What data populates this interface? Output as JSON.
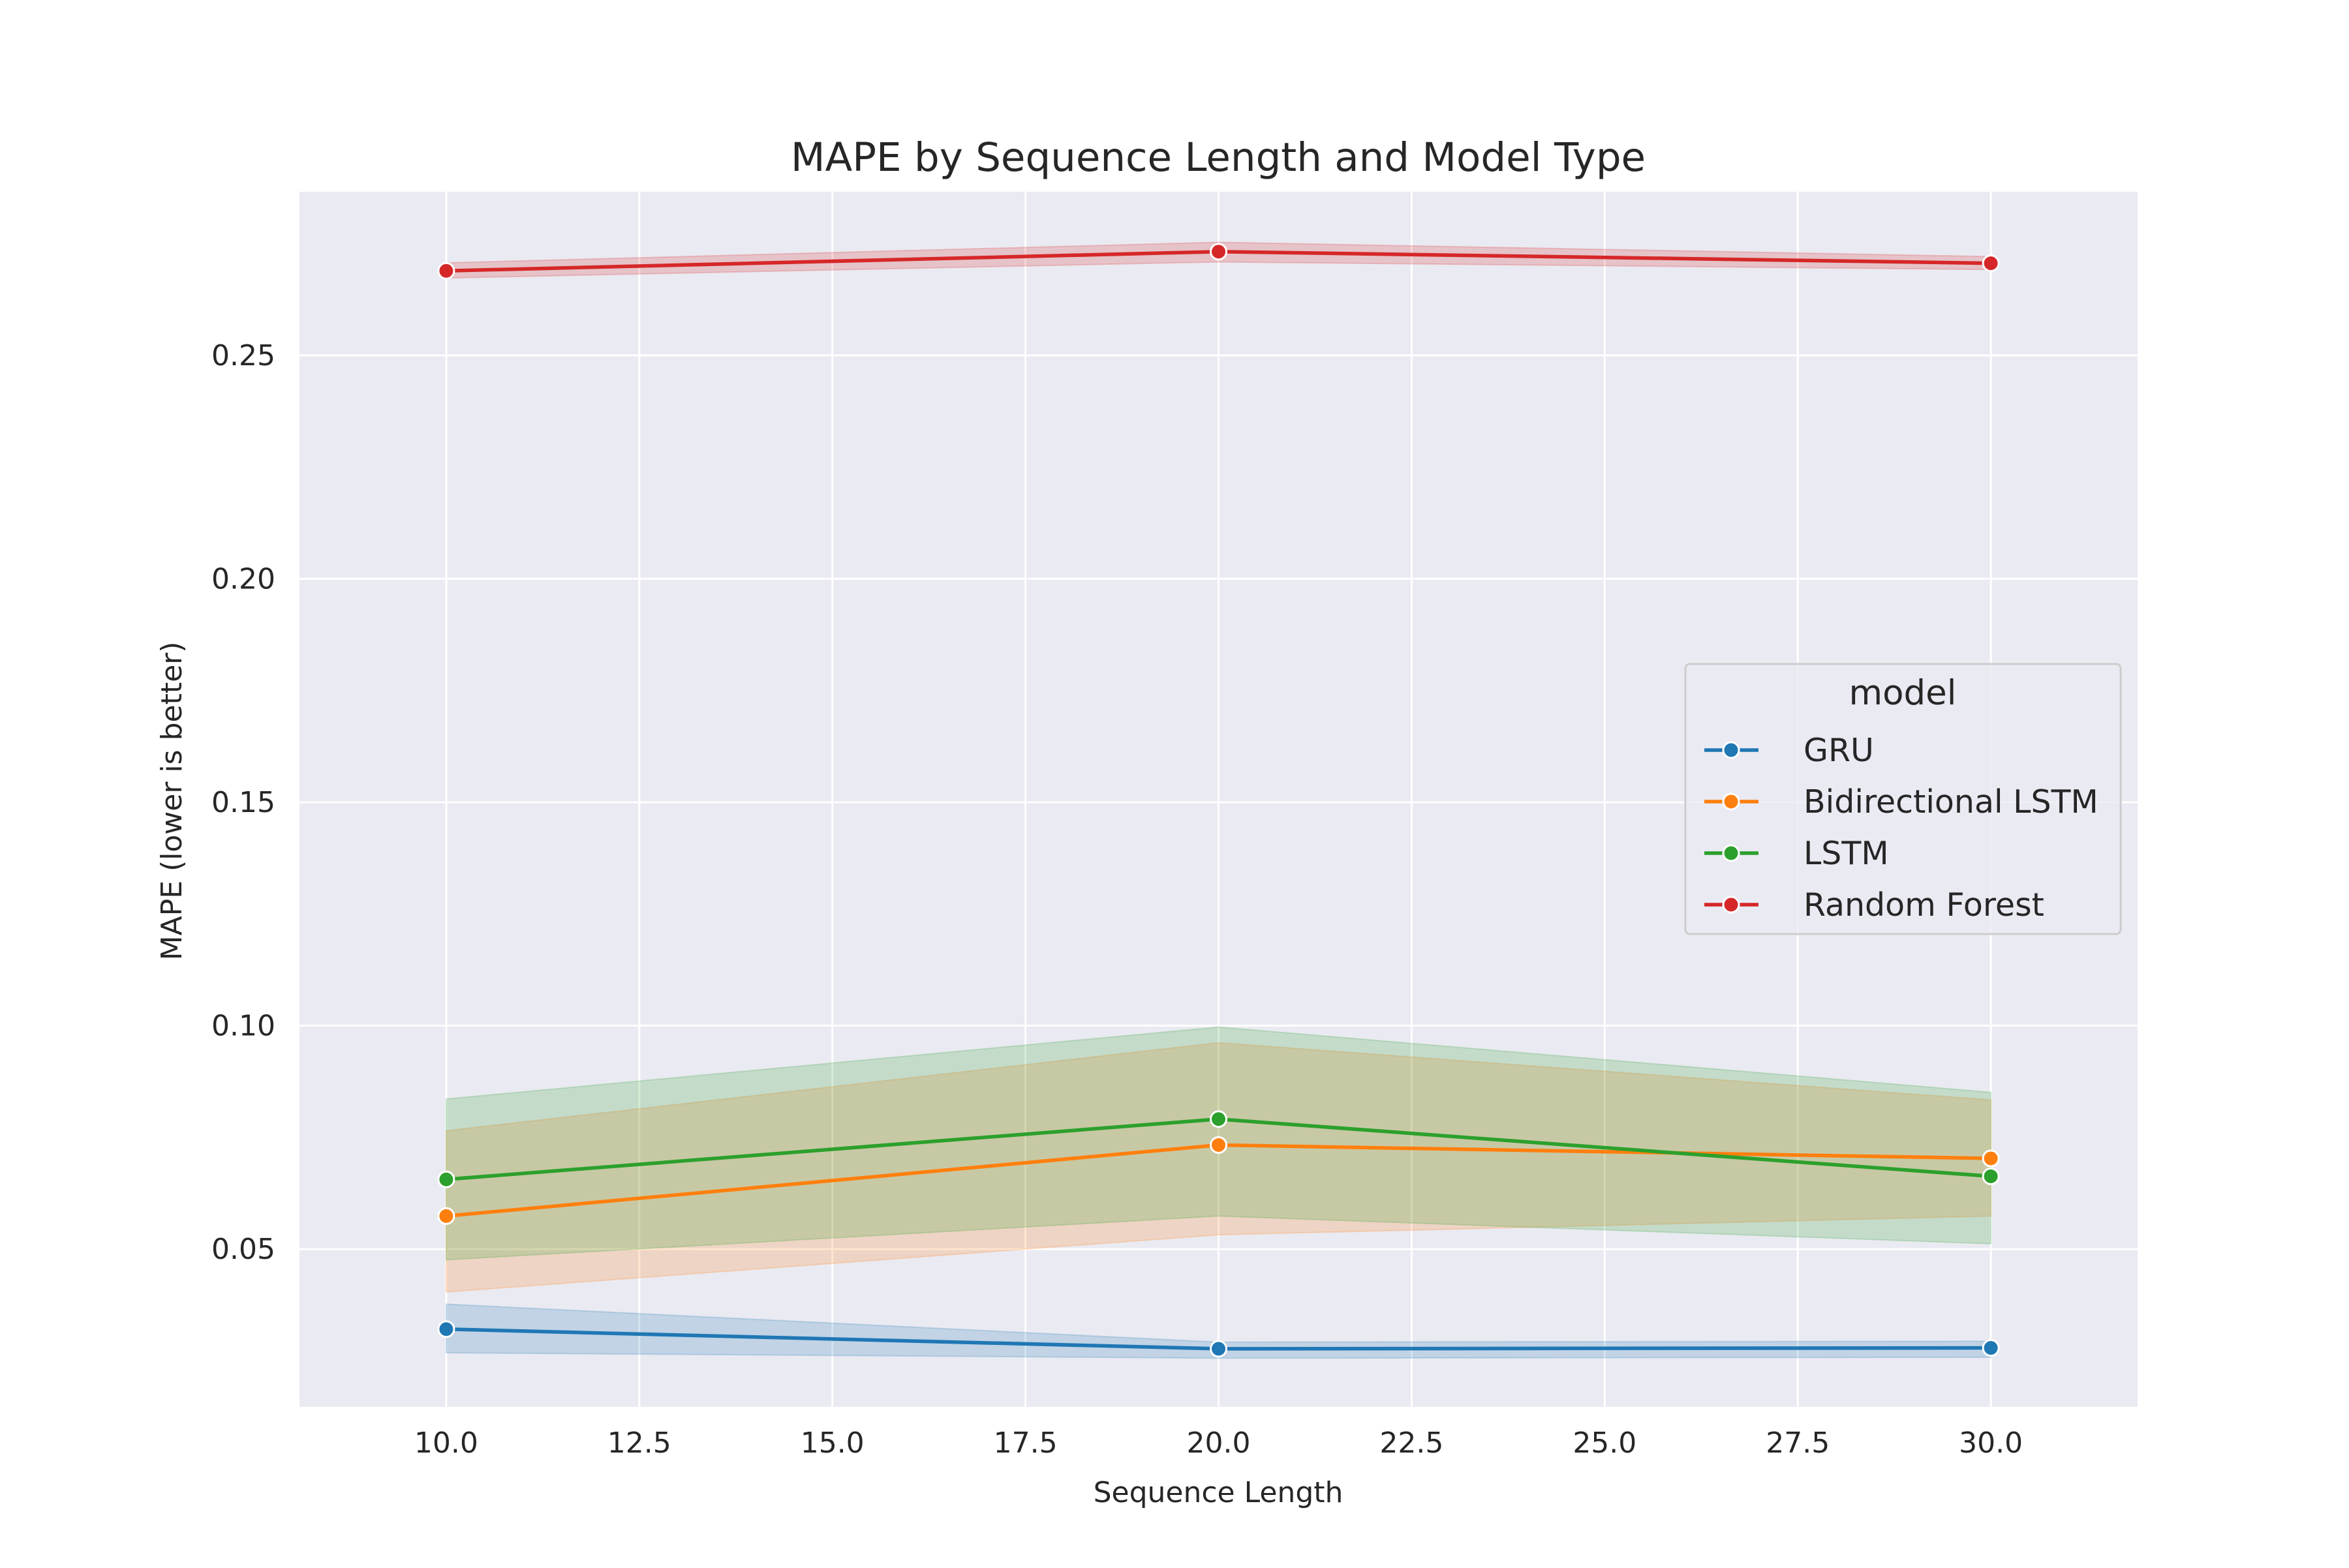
{
  "chart_data": {
    "type": "line",
    "title": "MAPE by Sequence Length and Model Type",
    "xlabel": "Sequence Length",
    "ylabel": "MAPE (lower is better)",
    "xlim": [
      8.1,
      31.9
    ],
    "ylim": [
      0.0147,
      0.2866
    ],
    "x_ticks": [
      10,
      12.5,
      15,
      17.5,
      20,
      22.5,
      25,
      27.5,
      30
    ],
    "x_tick_labels": [
      "10.0",
      "12.5",
      "15.0",
      "17.5",
      "20.0",
      "22.5",
      "25.0",
      "27.5",
      "30.0"
    ],
    "y_ticks": [
      0.05,
      0.1,
      0.15,
      0.2,
      0.25
    ],
    "y_tick_labels": [
      "0.05",
      "0.10",
      "0.15",
      "0.20",
      "0.25"
    ],
    "grid": true,
    "legend": {
      "title": "model",
      "placement": "center-right"
    },
    "x": [
      10,
      20,
      30
    ],
    "series": [
      {
        "name": "GRU",
        "color": "#1f77b4",
        "values": [
          0.0321,
          0.0277,
          0.0279
        ],
        "ci_low": [
          0.0268,
          0.0256,
          0.0258
        ],
        "ci_high": [
          0.0377,
          0.0292,
          0.0294
        ]
      },
      {
        "name": "Bidirectional LSTM",
        "color": "#ff7f0e",
        "values": [
          0.0574,
          0.0733,
          0.0703
        ],
        "ci_low": [
          0.0404,
          0.0532,
          0.0574
        ],
        "ci_high": [
          0.0765,
          0.0962,
          0.0834
        ]
      },
      {
        "name": "LSTM",
        "color": "#2ca02c",
        "values": [
          0.0656,
          0.0791,
          0.0663
        ],
        "ci_low": [
          0.0476,
          0.0574,
          0.0512
        ],
        "ci_high": [
          0.0836,
          0.0997,
          0.0851
        ]
      },
      {
        "name": "Random Forest",
        "color": "#d62728",
        "values": [
          0.2689,
          0.2732,
          0.2706
        ],
        "ci_low": [
          0.2673,
          0.2709,
          0.2692
        ],
        "ci_high": [
          0.2707,
          0.2753,
          0.2721
        ]
      }
    ]
  }
}
